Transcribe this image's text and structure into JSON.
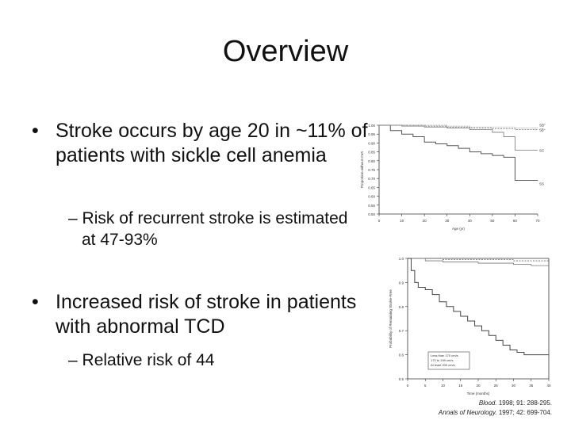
{
  "slide": {
    "title": "Overview",
    "bullets": [
      {
        "text": "Stroke occurs by age 20 in ~11% of patients with sickle cell anemia",
        "sub": "Risk of recurrent stroke is estimated at 47-93%"
      },
      {
        "text": "Increased risk of stroke in patients with abnormal TCD",
        "sub": "Relative risk of 44"
      }
    ],
    "bullet_glyph": "•",
    "sub_glyph": "–"
  },
  "citations": [
    {
      "source": "Blood.",
      "ref": "1998; 91: 288-295."
    },
    {
      "source": "Annals of Neurology.",
      "ref": "1997; 42: 699-704."
    }
  ],
  "chart_data": [
    {
      "type": "line",
      "ylabel": "Proportion without CVA",
      "xlabel": "Age (yr)",
      "yticks": [
        "1.00",
        "0.95",
        "0.90",
        "0.85",
        "0.80",
        "0.75",
        "0.70",
        "0.65",
        "0.60",
        "0.55",
        "0.50"
      ],
      "xticks": [
        "0",
        "10",
        "20",
        "30",
        "40",
        "50",
        "60",
        "70"
      ],
      "ylim": [
        0.5,
        1.0
      ],
      "xlim": [
        0,
        70
      ],
      "series": [
        {
          "name": "SB°",
          "x": [
            0,
            10,
            20,
            30,
            40,
            50,
            60,
            70
          ],
          "y": [
            1.0,
            1.0,
            0.995,
            0.99,
            0.985,
            0.98,
            0.975,
            0.975
          ]
        },
        {
          "name": "SS",
          "x": [
            0,
            5,
            10,
            15,
            20,
            25,
            30,
            35,
            40,
            45,
            50,
            55,
            60,
            65,
            70
          ],
          "y": [
            1.0,
            0.97,
            0.95,
            0.935,
            0.905,
            0.895,
            0.885,
            0.87,
            0.85,
            0.84,
            0.83,
            0.82,
            0.69,
            0.69,
            0.69
          ]
        },
        {
          "name": "SC",
          "x": [
            0,
            10,
            20,
            30,
            40,
            50,
            55,
            60,
            65,
            70
          ],
          "y": [
            1.0,
            0.995,
            0.99,
            0.985,
            0.975,
            0.96,
            0.935,
            0.86,
            0.86,
            0.86
          ]
        },
        {
          "name": "Sβ⁺",
          "x": [
            0,
            10,
            20,
            30,
            40,
            50,
            60,
            70
          ],
          "y": [
            1.0,
            1.0,
            1.0,
            0.995,
            0.99,
            0.99,
            0.985,
            0.985
          ]
        }
      ]
    },
    {
      "type": "line",
      "ylabel": "Probability of Remaining Stroke-Free",
      "xlabel": "Time (months)",
      "yticks": [
        "1.0",
        "0.9",
        "0.8",
        "0.7",
        "0.6",
        "0.5"
      ],
      "xticks": [
        "0",
        "5",
        "10",
        "15",
        "20",
        "25",
        "30",
        "35",
        "40"
      ],
      "ylim": [
        0.5,
        1.0
      ],
      "xlim": [
        0,
        40
      ],
      "legend": [
        "Less than 170 cm/s",
        "170 to 199 cm/s",
        "At least 200 cm/s"
      ],
      "series": [
        {
          "name": "Less than 170 cm/s",
          "x": [
            0,
            5,
            10,
            20,
            30,
            40
          ],
          "y": [
            1.0,
            1.0,
            0.995,
            0.995,
            0.99,
            0.99
          ]
        },
        {
          "name": "170 to 199 cm/s",
          "x": [
            0,
            5,
            10,
            20,
            30,
            35,
            40
          ],
          "y": [
            1.0,
            0.99,
            0.985,
            0.98,
            0.975,
            0.97,
            0.97
          ]
        },
        {
          "name": "At least 200 cm/s",
          "x": [
            0,
            1,
            2,
            3,
            5,
            7,
            9,
            11,
            13,
            15,
            17,
            19,
            21,
            23,
            25,
            27,
            29,
            31,
            33,
            35,
            40
          ],
          "y": [
            1.0,
            0.95,
            0.9,
            0.88,
            0.87,
            0.85,
            0.82,
            0.8,
            0.78,
            0.76,
            0.74,
            0.72,
            0.7,
            0.68,
            0.66,
            0.64,
            0.62,
            0.61,
            0.6,
            0.6,
            0.6
          ]
        }
      ]
    }
  ]
}
